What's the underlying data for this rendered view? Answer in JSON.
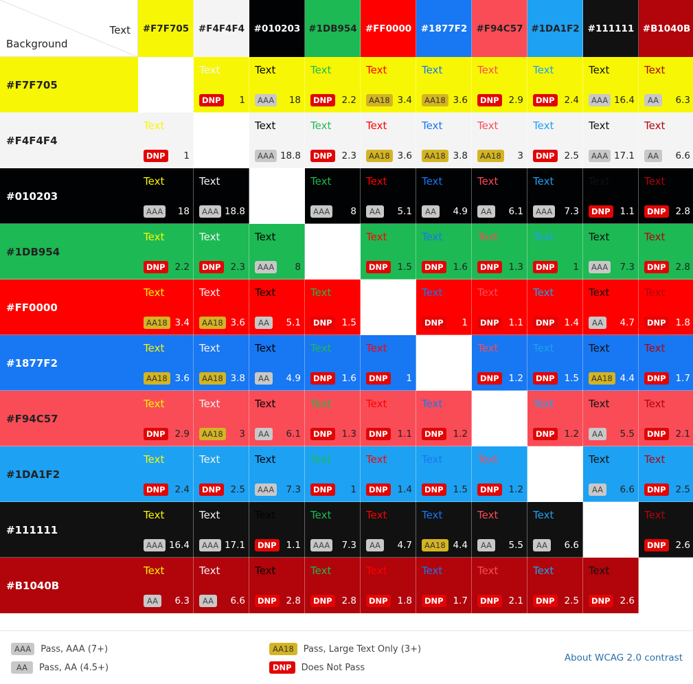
{
  "header": {
    "corner_text": "Text",
    "corner_background": "Background"
  },
  "colors": [
    "#F7F705",
    "#F4F4F4",
    "#010203",
    "#1DB954",
    "#FF0000",
    "#1877F2",
    "#F94C57",
    "#1DA1F2",
    "#111111",
    "#B1040B"
  ],
  "column_label_colors": [
    "#222222",
    "#222222",
    "#ffffff",
    "#222222",
    "#ffffff",
    "#ffffff",
    "#222222",
    "#222222",
    "#ffffff",
    "#ffffff"
  ],
  "row_label_colors": [
    "#222222",
    "#222222",
    "#ffffff",
    "#222222",
    "#ffffff",
    "#ffffff",
    "#222222",
    "#222222",
    "#ffffff",
    "#ffffff"
  ],
  "sample_text": "Text",
  "badge_labels": {
    "AAA": "AAA",
    "AA": "AA",
    "AA18": "AA18",
    "DNP": "DNP"
  },
  "badge_colors": {
    "AAA": "#c8c8c8",
    "AA": "#c8c8c8",
    "AA18": "#d4b422",
    "DNP": "#e20505"
  },
  "matrix": [
    [
      null,
      {
        "r": "1",
        "b": "DNP"
      },
      {
        "r": "18",
        "b": "AAA"
      },
      {
        "r": "2.2",
        "b": "DNP"
      },
      {
        "r": "3.4",
        "b": "AA18"
      },
      {
        "r": "3.6",
        "b": "AA18"
      },
      {
        "r": "2.9",
        "b": "DNP"
      },
      {
        "r": "2.4",
        "b": "DNP"
      },
      {
        "r": "16.4",
        "b": "AAA"
      },
      {
        "r": "6.3",
        "b": "AA"
      }
    ],
    [
      {
        "r": "1",
        "b": "DNP"
      },
      null,
      {
        "r": "18.8",
        "b": "AAA"
      },
      {
        "r": "2.3",
        "b": "DNP"
      },
      {
        "r": "3.6",
        "b": "AA18"
      },
      {
        "r": "3.8",
        "b": "AA18"
      },
      {
        "r": "3",
        "b": "AA18"
      },
      {
        "r": "2.5",
        "b": "DNP"
      },
      {
        "r": "17.1",
        "b": "AAA"
      },
      {
        "r": "6.6",
        "b": "AA"
      }
    ],
    [
      {
        "r": "18",
        "b": "AAA"
      },
      {
        "r": "18.8",
        "b": "AAA"
      },
      null,
      {
        "r": "8",
        "b": "AAA"
      },
      {
        "r": "5.1",
        "b": "AA"
      },
      {
        "r": "4.9",
        "b": "AA"
      },
      {
        "r": "6.1",
        "b": "AA"
      },
      {
        "r": "7.3",
        "b": "AAA"
      },
      {
        "r": "1.1",
        "b": "DNP"
      },
      {
        "r": "2.8",
        "b": "DNP"
      }
    ],
    [
      {
        "r": "2.2",
        "b": "DNP"
      },
      {
        "r": "2.3",
        "b": "DNP"
      },
      {
        "r": "8",
        "b": "AAA"
      },
      null,
      {
        "r": "1.5",
        "b": "DNP"
      },
      {
        "r": "1.6",
        "b": "DNP"
      },
      {
        "r": "1.3",
        "b": "DNP"
      },
      {
        "r": "1",
        "b": "DNP"
      },
      {
        "r": "7.3",
        "b": "AAA"
      },
      {
        "r": "2.8",
        "b": "DNP"
      }
    ],
    [
      {
        "r": "3.4",
        "b": "AA18"
      },
      {
        "r": "3.6",
        "b": "AA18"
      },
      {
        "r": "5.1",
        "b": "AA"
      },
      {
        "r": "1.5",
        "b": "DNP"
      },
      null,
      {
        "r": "1",
        "b": "DNP"
      },
      {
        "r": "1.1",
        "b": "DNP"
      },
      {
        "r": "1.4",
        "b": "DNP"
      },
      {
        "r": "4.7",
        "b": "AA"
      },
      {
        "r": "1.8",
        "b": "DNP"
      }
    ],
    [
      {
        "r": "3.6",
        "b": "AA18"
      },
      {
        "r": "3.8",
        "b": "AA18"
      },
      {
        "r": "4.9",
        "b": "AA"
      },
      {
        "r": "1.6",
        "b": "DNP"
      },
      {
        "r": "1",
        "b": "DNP"
      },
      null,
      {
        "r": "1.2",
        "b": "DNP"
      },
      {
        "r": "1.5",
        "b": "DNP"
      },
      {
        "r": "4.4",
        "b": "AA18"
      },
      {
        "r": "1.7",
        "b": "DNP"
      }
    ],
    [
      {
        "r": "2.9",
        "b": "DNP"
      },
      {
        "r": "3",
        "b": "AA18"
      },
      {
        "r": "6.1",
        "b": "AA"
      },
      {
        "r": "1.3",
        "b": "DNP"
      },
      {
        "r": "1.1",
        "b": "DNP"
      },
      {
        "r": "1.2",
        "b": "DNP"
      },
      null,
      {
        "r": "1.2",
        "b": "DNP"
      },
      {
        "r": "5.5",
        "b": "AA"
      },
      {
        "r": "2.1",
        "b": "DNP"
      }
    ],
    [
      {
        "r": "2.4",
        "b": "DNP"
      },
      {
        "r": "2.5",
        "b": "DNP"
      },
      {
        "r": "7.3",
        "b": "AAA"
      },
      {
        "r": "1",
        "b": "DNP"
      },
      {
        "r": "1.4",
        "b": "DNP"
      },
      {
        "r": "1.5",
        "b": "DNP"
      },
      {
        "r": "1.2",
        "b": "DNP"
      },
      null,
      {
        "r": "6.6",
        "b": "AA"
      },
      {
        "r": "2.5",
        "b": "DNP"
      }
    ],
    [
      {
        "r": "16.4",
        "b": "AAA"
      },
      {
        "r": "17.1",
        "b": "AAA"
      },
      {
        "r": "1.1",
        "b": "DNP"
      },
      {
        "r": "7.3",
        "b": "AAA"
      },
      {
        "r": "4.7",
        "b": "AA"
      },
      {
        "r": "4.4",
        "b": "AA18"
      },
      {
        "r": "5.5",
        "b": "AA"
      },
      {
        "r": "6.6",
        "b": "AA"
      },
      null,
      {
        "r": "2.6",
        "b": "DNP"
      }
    ],
    [
      {
        "r": "6.3",
        "b": "AA"
      },
      {
        "r": "6.6",
        "b": "AA"
      },
      {
        "r": "2.8",
        "b": "DNP"
      },
      {
        "r": "2.8",
        "b": "DNP"
      },
      {
        "r": "1.8",
        "b": "DNP"
      },
      {
        "r": "1.7",
        "b": "DNP"
      },
      {
        "r": "2.1",
        "b": "DNP"
      },
      {
        "r": "2.5",
        "b": "DNP"
      },
      {
        "r": "2.6",
        "b": "DNP"
      },
      null
    ]
  ],
  "legend": {
    "aaa_label": "AAA",
    "aaa_text": "Pass, AAA (7+)",
    "aa_label": "AA",
    "aa_text": "Pass, AA (4.5+)",
    "aa18_label": "AA18",
    "aa18_text": "Pass, Large Text Only (3+)",
    "dnp_label": "DNP",
    "dnp_text": "Does Not Pass",
    "about_link": "About WCAG 2.0 contrast"
  }
}
